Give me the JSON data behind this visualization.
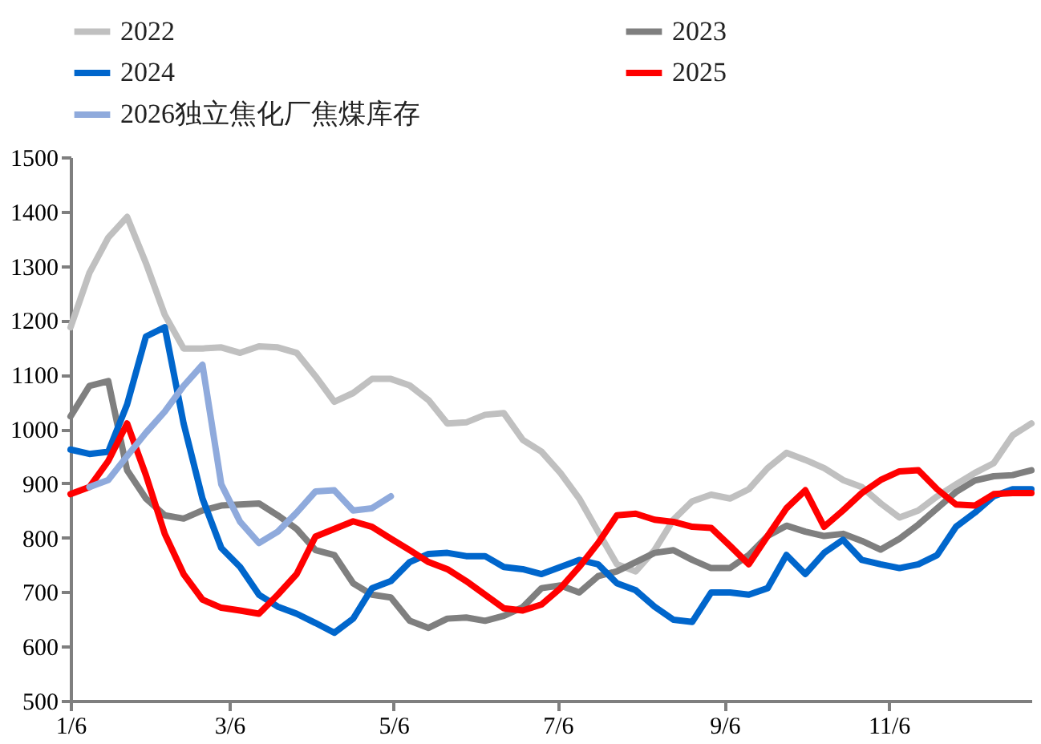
{
  "chart_data": {
    "type": "line",
    "x": [
      "--01-06",
      "--01-13",
      "--01-20",
      "--01-27",
      "--02-03",
      "--02-10",
      "--02-17",
      "--02-24",
      "--03-03",
      "--03-10",
      "--03-17",
      "--03-24",
      "--03-31",
      "--04-07",
      "--04-14",
      "--04-21",
      "--04-28",
      "--05-05",
      "--05-12",
      "--05-19",
      "--05-26",
      "--06-02",
      "--06-09",
      "--06-16",
      "--06-23",
      "--06-30",
      "--07-07",
      "--07-14",
      "--07-21",
      "--07-28",
      "--08-04",
      "--08-11",
      "--08-18",
      "--08-25",
      "--09-01",
      "--09-08",
      "--09-15",
      "--09-22",
      "--09-29",
      "--10-06",
      "--10-13",
      "--10-20",
      "--10-27",
      "--11-03",
      "--11-10",
      "--11-17",
      "--11-24",
      "--12-01",
      "--12-08",
      "--12-15",
      "--12-22",
      "--12-29"
    ],
    "xlim": [
      "--01-06",
      "--12-29"
    ],
    "xticks": [
      {
        "value": "--01-06",
        "label": "1/6"
      },
      {
        "value": "--03-06",
        "label": "3/6"
      },
      {
        "value": "--05-06",
        "label": "5/6"
      },
      {
        "value": "--07-06",
        "label": "7/6"
      },
      {
        "value": "--09-06",
        "label": "9/6"
      },
      {
        "value": "--11-06",
        "label": "11/6"
      }
    ],
    "ylim": [
      500,
      1500
    ],
    "yticks": [
      500,
      600,
      700,
      800,
      900,
      1000,
      1100,
      1200,
      1300,
      1400,
      1500
    ],
    "grid": false,
    "legend": "top",
    "series": [
      {
        "name": "2022",
        "color": "#c0c0c0",
        "values": [
          1187,
          1287,
          1352,
          1390,
          1305,
          1210,
          1148,
          1148,
          1150,
          1140,
          1152,
          1150,
          1140,
          1097,
          1050,
          1066,
          1092,
          1092,
          1080,
          1053,
          1010,
          1012,
          1026,
          1029,
          980,
          958,
          919,
          872,
          811,
          751,
          738,
          777,
          833,
          867,
          879,
          872,
          889,
          928,
          956,
          943,
          928,
          906,
          893,
          863,
          837,
          850,
          876,
          898,
          919,
          937,
          988,
          1010
        ]
      },
      {
        "name": "2023",
        "color": "#7f7f7f",
        "values": [
          1023,
          1079,
          1088,
          924,
          872,
          841,
          835,
          850,
          859,
          861,
          863,
          841,
          816,
          777,
          768,
          716,
          695,
          690,
          647,
          634,
          651,
          653,
          647,
          656,
          672,
          707,
          712,
          699,
          729,
          738,
          755,
          772,
          777,
          759,
          744,
          744,
          768,
          803,
          822,
          811,
          803,
          807,
          794,
          778,
          798,
          824,
          854,
          884,
          905,
          913,
          915,
          924
        ]
      },
      {
        "name": "2024",
        "color": "#0066cc",
        "values": [
          962,
          954,
          958,
          1045,
          1170,
          1187,
          1010,
          872,
          781,
          746,
          695,
          673,
          660,
          643,
          625,
          651,
          707,
          720,
          755,
          770,
          772,
          766,
          766,
          746,
          742,
          733,
          746,
          759,
          751,
          716,
          703,
          673,
          649,
          645,
          699,
          699,
          695,
          707,
          768,
          733,
          772,
          796,
          759,
          751,
          744,
          751,
          768,
          820,
          846,
          876,
          889,
          889
        ]
      },
      {
        "name": "2025",
        "color": "#ff0000",
        "values": [
          880,
          893,
          941,
          1010,
          915,
          807,
          733,
          686,
          671,
          666,
          660,
          695,
          733,
          802,
          816,
          830,
          820,
          798,
          777,
          755,
          742,
          720,
          695,
          670,
          666,
          677,
          707,
          746,
          790,
          841,
          844,
          833,
          829,
          820,
          818,
          785,
          751,
          803,
          854,
          887,
          820,
          850,
          882,
          906,
          922,
          924,
          889,
          861,
          859,
          880,
          882,
          882
        ]
      },
      {
        "name": "2026独立焦化厂焦煤库存",
        "color": "#8faadc",
        "x": [
          "--01-13",
          "--01-20",
          "--01-27",
          "--02-03",
          "--02-10",
          "--02-17",
          "--02-24",
          "--03-03",
          "--03-10",
          "--03-17",
          "--03-24",
          "--03-31",
          "--04-07",
          "--04-14",
          "--04-21",
          "--04-28",
          "--05-05"
        ],
        "values": [
          893,
          906,
          950,
          993,
          1032,
          1079,
          1118,
          898,
          829,
          790,
          811,
          846,
          885,
          887,
          850,
          854,
          876
        ]
      }
    ]
  }
}
